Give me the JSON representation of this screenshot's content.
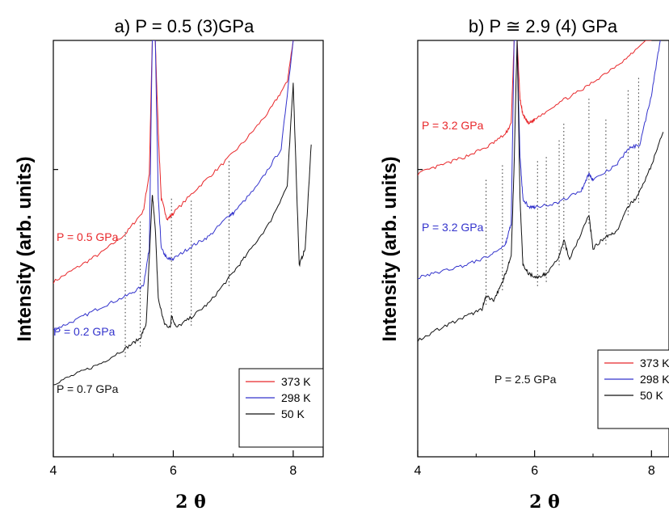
{
  "colors": {
    "373 K": "#e8272a",
    "298 K": "#3333cc",
    "50 K": "#111111",
    "annotation_black": "#111111"
  },
  "xlabel": "2 θ",
  "ylabel": "Intensity (arb. units)",
  "chart_data": [
    {
      "type": "line",
      "title": "a) P = 0.5 (3)GPa",
      "xlabel": "2 θ",
      "ylabel": "Intensity (arb. units)",
      "xlim": [
        4,
        8.5
      ],
      "xticks": [
        4,
        6,
        8
      ],
      "yticks": "none",
      "grid": false,
      "legend": {
        "placement": "bottom-right",
        "entries": [
          "373 K",
          "298 K",
          "50 K"
        ]
      },
      "annotations": [
        {
          "text": "P = 0.5 GPa",
          "series": "373 K"
        },
        {
          "text": "P = 0.2 GPa",
          "series": "298 K"
        },
        {
          "text": "P = 0.7 GPa",
          "series": "50 K"
        }
      ],
      "dotted_marker_x": [
        5.2,
        5.45,
        5.97,
        6.3,
        6.93
      ],
      "series": [
        {
          "name": "373 K",
          "x": [
            4.0,
            4.4,
            4.8,
            5.2,
            5.5,
            5.6,
            5.65,
            5.7,
            5.75,
            5.8,
            5.9,
            6.0,
            6.4,
            6.8,
            7.2,
            7.6,
            7.9,
            8.0
          ],
          "y": [
            0.42,
            0.455,
            0.49,
            0.535,
            0.59,
            0.68,
            1.0,
            1.0,
            0.78,
            0.62,
            0.57,
            0.585,
            0.645,
            0.7,
            0.76,
            0.83,
            0.9,
            1.0
          ]
        },
        {
          "name": "298 K",
          "x": [
            4.0,
            4.4,
            4.8,
            5.2,
            5.5,
            5.6,
            5.65,
            5.7,
            5.75,
            5.8,
            5.9,
            6.0,
            6.3,
            6.6,
            6.93,
            7.0,
            7.4,
            7.8,
            8.0
          ],
          "y": [
            0.305,
            0.33,
            0.36,
            0.385,
            0.41,
            0.5,
            1.0,
            1.0,
            0.62,
            0.5,
            0.475,
            0.475,
            0.505,
            0.53,
            0.58,
            0.585,
            0.65,
            0.74,
            1.0
          ]
        },
        {
          "name": "50 K",
          "x": [
            4.0,
            4.4,
            4.8,
            5.2,
            5.45,
            5.55,
            5.65,
            5.7,
            5.75,
            5.85,
            5.95,
            5.97,
            6.05,
            6.3,
            6.6,
            6.93,
            7.2,
            7.6,
            7.9,
            8.0,
            8.1,
            8.2,
            8.3
          ],
          "y": [
            0.175,
            0.2,
            0.225,
            0.26,
            0.285,
            0.32,
            0.63,
            0.55,
            0.38,
            0.32,
            0.31,
            0.34,
            0.31,
            0.335,
            0.37,
            0.43,
            0.48,
            0.56,
            0.65,
            0.9,
            0.46,
            0.5,
            0.75
          ]
        }
      ]
    },
    {
      "type": "line",
      "title": "b) P ≅ 2.9 (4) GPa",
      "xlabel": "2 θ",
      "ylabel": "Intensity (arb. units)",
      "xlim": [
        4,
        8.3
      ],
      "xticks": [
        4,
        6,
        8
      ],
      "yticks": "none",
      "grid": false,
      "legend": {
        "placement": "bottom-right",
        "entries": [
          "373 K",
          "298 K",
          "50 K"
        ]
      },
      "annotations": [
        {
          "text": "P = 3.2 GPa",
          "series": "373 K"
        },
        {
          "text": "P = 3.2 GPa",
          "series": "298 K"
        },
        {
          "text": "P = 2.5 GPa",
          "series": "50 K"
        }
      ],
      "dotted_marker_x": [
        5.17,
        5.45,
        6.05,
        6.2,
        6.42,
        6.5,
        6.93,
        7.22,
        7.6,
        7.78
      ],
      "series": [
        {
          "name": "373 K",
          "x": [
            4.0,
            4.4,
            4.8,
            5.2,
            5.5,
            5.6,
            5.65,
            5.7,
            5.75,
            5.8,
            5.9,
            6.0,
            6.4,
            6.8,
            7.2,
            7.6,
            7.9,
            8.0
          ],
          "y": [
            0.68,
            0.7,
            0.72,
            0.745,
            0.775,
            0.8,
            1.0,
            1.0,
            0.86,
            0.82,
            0.8,
            0.81,
            0.85,
            0.88,
            0.92,
            0.96,
            1.0,
            1.0
          ]
        },
        {
          "name": "298 K",
          "x": [
            4.0,
            4.4,
            4.8,
            5.2,
            5.5,
            5.6,
            5.65,
            5.7,
            5.75,
            5.8,
            5.9,
            6.0,
            6.4,
            6.8,
            6.93,
            7.0,
            7.4,
            7.6,
            7.8,
            8.0,
            8.15
          ],
          "y": [
            0.43,
            0.445,
            0.46,
            0.48,
            0.51,
            0.56,
            1.0,
            1.0,
            0.72,
            0.62,
            0.6,
            0.6,
            0.61,
            0.64,
            0.68,
            0.665,
            0.7,
            0.74,
            0.75,
            0.87,
            1.0
          ]
        },
        {
          "name": "50 K",
          "x": [
            4.0,
            4.4,
            4.8,
            5.1,
            5.17,
            5.3,
            5.45,
            5.5,
            5.6,
            5.65,
            5.7,
            5.75,
            5.8,
            5.9,
            6.05,
            6.2,
            6.42,
            6.5,
            6.6,
            6.93,
            7.0,
            7.22,
            7.4,
            7.6,
            7.78,
            8.0,
            8.2
          ],
          "y": [
            0.28,
            0.31,
            0.335,
            0.355,
            0.385,
            0.375,
            0.42,
            0.44,
            0.48,
            0.7,
            1.0,
            0.62,
            0.46,
            0.44,
            0.43,
            0.44,
            0.48,
            0.52,
            0.475,
            0.58,
            0.5,
            0.53,
            0.54,
            0.6,
            0.63,
            0.7,
            0.78
          ]
        }
      ]
    }
  ]
}
